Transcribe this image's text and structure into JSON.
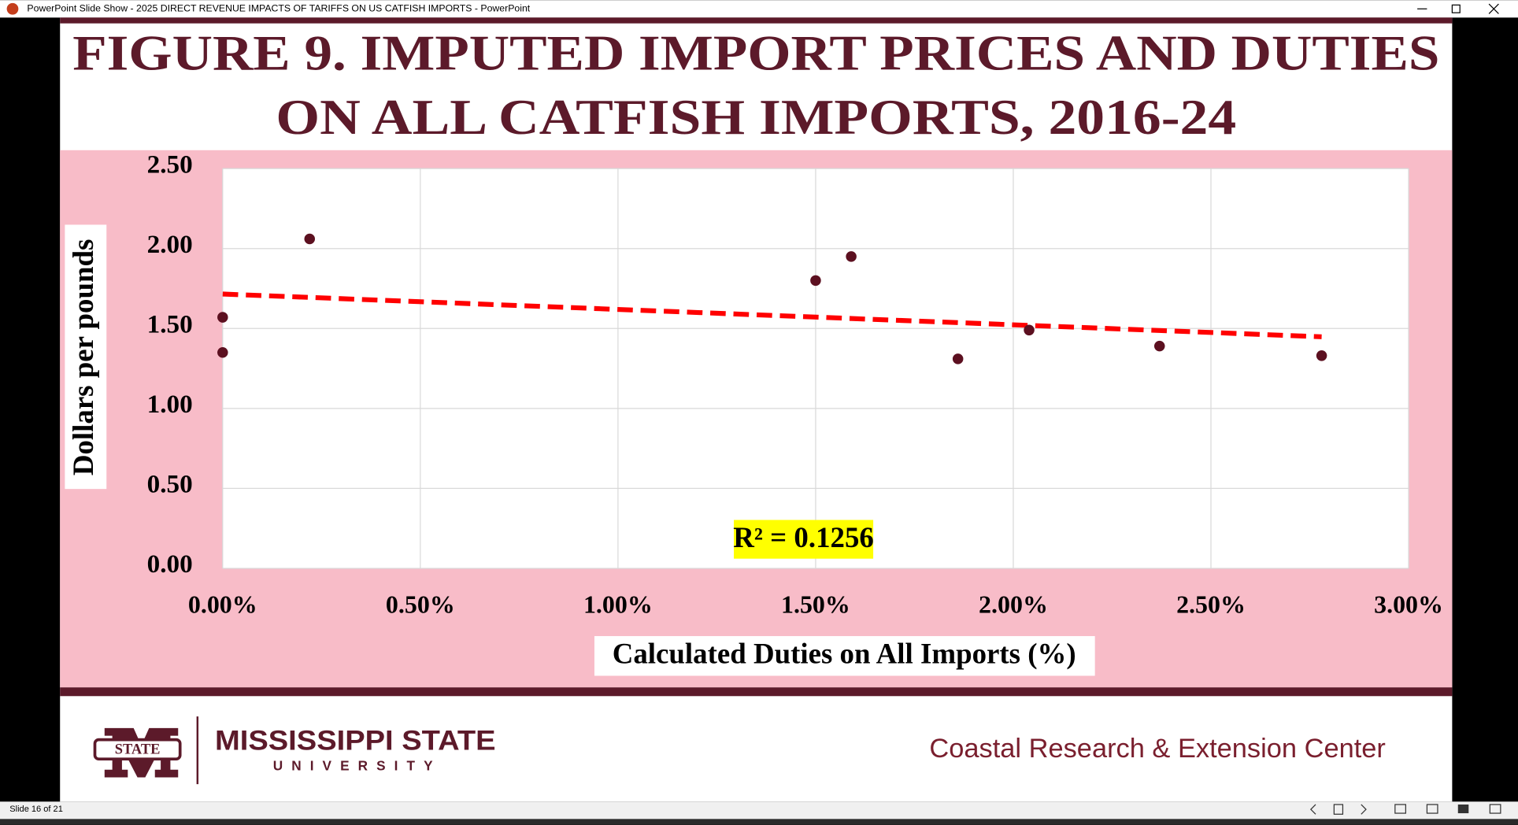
{
  "window": {
    "title": "PowerPoint Slide Show  -  2025 DIRECT REVENUE IMPACTS OF TARIFFS ON US CATFISH IMPORTS - PowerPoint"
  },
  "slide": {
    "title_lines": [
      "FIGURE 9. IMPUTED IMPORT PRICES AND DUTIES",
      "ON ALL CATFISH IMPORTS, 2016-24"
    ]
  },
  "chart_data": {
    "type": "scatter",
    "x_label": "Calculated Duties on All Imports (%)",
    "y_label": "Dollars per pounds",
    "annotation": "R² = 0.1256",
    "color": "#5c1020",
    "trendline_color": "#ff0000",
    "grid": true,
    "x": [
      0.0,
      0.0,
      0.22,
      1.5,
      1.59,
      1.86,
      2.04,
      2.37,
      2.78
    ],
    "values": [
      1.57,
      1.35,
      2.06,
      1.8,
      1.95,
      1.31,
      1.49,
      1.39,
      1.33
    ],
    "xlim": [
      0,
      3
    ],
    "ylim": [
      0,
      2.5
    ],
    "xticks": [
      {
        "value": 0,
        "label": "0.00%"
      },
      {
        "value": 0.5,
        "label": "0.50%"
      },
      {
        "value": 1,
        "label": "1.00%"
      },
      {
        "value": 1.5,
        "label": "1.50%"
      },
      {
        "value": 2,
        "label": "2.00%"
      },
      {
        "value": 2.5,
        "label": "2.50%"
      },
      {
        "value": 3,
        "label": "3.00%"
      }
    ],
    "yticks": [
      {
        "value": 0,
        "label": "0.00"
      },
      {
        "value": 0.5,
        "label": "0.50"
      },
      {
        "value": 1,
        "label": "1.00"
      },
      {
        "value": 1.5,
        "label": "1.50"
      },
      {
        "value": 2,
        "label": "2.00"
      },
      {
        "value": 2.5,
        "label": "2.50"
      }
    ]
  },
  "footer": {
    "logo_badge": "STATE",
    "university_line1": "MISSISSIPPI STATE",
    "university_line2": "UNIVERSITY",
    "center": "Coastal Research & Extension Center"
  },
  "status": {
    "slide": "Slide 16 of 21"
  }
}
